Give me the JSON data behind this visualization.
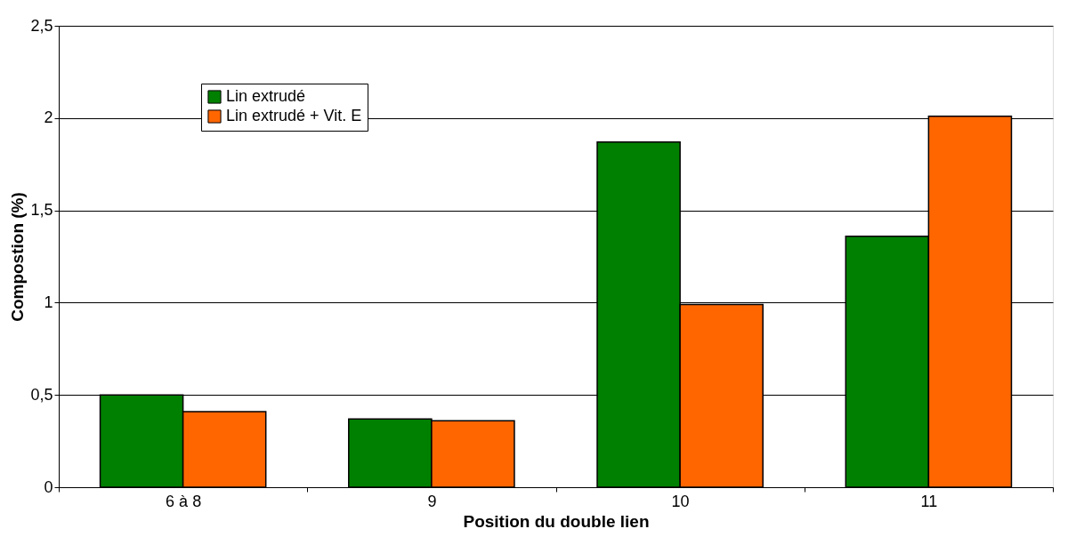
{
  "chart_data": {
    "type": "bar",
    "xlabel": "Position du double lien",
    "ylabel": "Compostion (%)",
    "categories": [
      "6 à 8",
      "9",
      "10",
      "11"
    ],
    "series": [
      {
        "name": "Lin extrudé",
        "color": "#008000",
        "values": [
          0.5,
          0.37,
          1.87,
          1.36
        ]
      },
      {
        "name": "Lin extrudé + Vit. E",
        "color": "#ff6600",
        "values": [
          0.41,
          0.36,
          0.99,
          2.01
        ]
      }
    ],
    "ylim": [
      0,
      2.5
    ],
    "yticks": [
      0,
      {
        "value": 0.5,
        "label": "0,5"
      },
      1,
      {
        "value": 1.5,
        "label": "1,5"
      },
      2,
      {
        "value": 2.5,
        "label": "2,5"
      }
    ],
    "grid": "y",
    "legend": "top left"
  }
}
